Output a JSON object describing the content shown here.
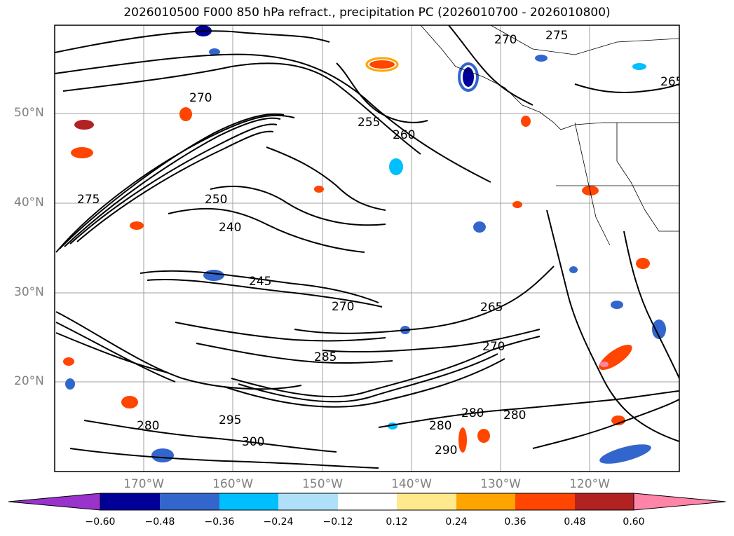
{
  "title": "2026010500 F000 850 hPa refract., precipitation PC (2026010700 - 2026010800)",
  "lat_labels": [
    "50°N",
    "40°N",
    "30°N",
    "20°N"
  ],
  "lon_labels": [
    "170°W",
    "160°W",
    "150°W",
    "140°W",
    "130°W",
    "120°W"
  ],
  "contour_labels": [
    "270",
    "275",
    "260",
    "265",
    "255",
    "250",
    "240",
    "245",
    "280",
    "285",
    "290",
    "295",
    "300"
  ],
  "colorbar": {
    "tick_labels": [
      "−0.60",
      "−0.48",
      "−0.36",
      "−0.24",
      "−0.12",
      "0.12",
      "0.24",
      "0.36",
      "0.48",
      "0.60"
    ],
    "colors": [
      "#9933cc",
      "#000099",
      "#3366cc",
      "#00bfff",
      "#aee0fa",
      "#ffffff",
      "#ffe98c",
      "#ffa500",
      "#ff4500",
      "#b22222",
      "#ff85a8"
    ]
  }
}
